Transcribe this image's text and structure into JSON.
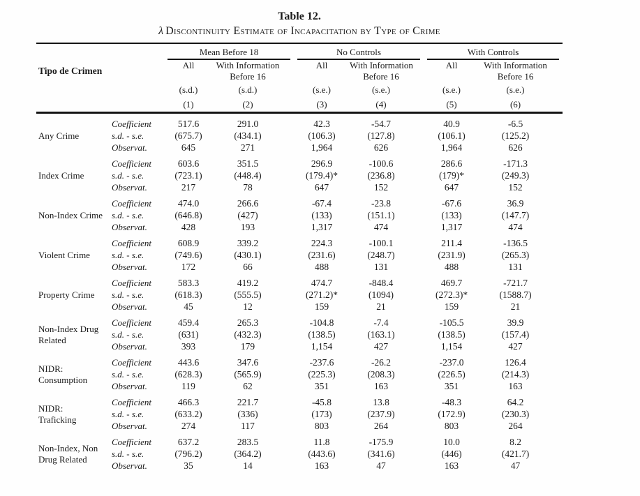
{
  "title": "Table 12.",
  "subtitle": {
    "lambda": "λ",
    "text": "Discontinuity Estimate of Incapacitation by Type of Crime"
  },
  "table": {
    "row_label_header": "Tipo de Crimen",
    "groups": [
      {
        "label": "Mean Before 18"
      },
      {
        "label": "No Controls"
      },
      {
        "label": "With Controls"
      }
    ],
    "columns": [
      {
        "label": "All",
        "label2": "",
        "stat": "(s.d.)",
        "num": "(1)"
      },
      {
        "label": "With Information",
        "label2": "Before 16",
        "stat": "(s.d.)",
        "num": "(2)"
      },
      {
        "label": "All",
        "label2": "",
        "stat": "(s.e.)",
        "num": "(3)"
      },
      {
        "label": "With Information",
        "label2": "Before 16",
        "stat": "(s.e.)",
        "num": "(4)"
      },
      {
        "label": "All",
        "label2": "",
        "stat": "(s.e.)",
        "num": "(5)"
      },
      {
        "label": "With Information",
        "label2": "Before 16",
        "stat": "(s.e.)",
        "num": "(6)"
      }
    ],
    "subrow_labels": [
      "Coefficient",
      "s.d. - s.e.",
      "Observat."
    ],
    "rows": [
      {
        "label": [
          "Any Crime"
        ],
        "coefficient": [
          "517.6",
          "291.0",
          "42.3",
          "-54.7",
          "40.9",
          "-6.5"
        ],
        "sd_se": [
          "(675.7)",
          "(434.1)",
          "(106.3)",
          "(127.8)",
          "(106.1)",
          "(125.2)"
        ],
        "observ": [
          "645",
          "271",
          "1,964",
          "626",
          "1,964",
          "626"
        ]
      },
      {
        "label": [
          "Index Crime"
        ],
        "coefficient": [
          "603.6",
          "351.5",
          "296.9",
          "-100.6",
          "286.6",
          "-171.3"
        ],
        "sd_se": [
          "(723.1)",
          "(448.4)",
          "(179.4)*",
          "(236.8)",
          "(179)*",
          "(249.3)"
        ],
        "observ": [
          "217",
          "78",
          "647",
          "152",
          "647",
          "152"
        ]
      },
      {
        "label": [
          "Non-Index Crime"
        ],
        "coefficient": [
          "474.0",
          "266.6",
          "-67.4",
          "-23.8",
          "-67.6",
          "36.9"
        ],
        "sd_se": [
          "(646.8)",
          "(427)",
          "(133)",
          "(151.1)",
          "(133)",
          "(147.7)"
        ],
        "observ": [
          "428",
          "193",
          "1,317",
          "474",
          "1,317",
          "474"
        ]
      },
      {
        "label": [
          "Violent Crime"
        ],
        "coefficient": [
          "608.9",
          "339.2",
          "224.3",
          "-100.1",
          "211.4",
          "-136.5"
        ],
        "sd_se": [
          "(749.6)",
          "(430.1)",
          "(231.6)",
          "(248.7)",
          "(231.9)",
          "(265.3)"
        ],
        "observ": [
          "172",
          "66",
          "488",
          "131",
          "488",
          "131"
        ]
      },
      {
        "label": [
          "Property Crime"
        ],
        "coefficient": [
          "583.3",
          "419.2",
          "474.7",
          "-848.4",
          "469.7",
          "-721.7"
        ],
        "sd_se": [
          "(618.3)",
          "(555.5)",
          "(271.2)*",
          "(1094)",
          "(272.3)*",
          "(1588.7)"
        ],
        "observ": [
          "45",
          "12",
          "159",
          "21",
          "159",
          "21"
        ]
      },
      {
        "label": [
          "Non-Index Drug",
          "Related"
        ],
        "coefficient": [
          "459.4",
          "265.3",
          "-104.8",
          "-7.4",
          "-105.5",
          "39.9"
        ],
        "sd_se": [
          "(631)",
          "(432.3)",
          "(138.5)",
          "(163.1)",
          "(138.5)",
          "(157.4)"
        ],
        "observ": [
          "393",
          "179",
          "1,154",
          "427",
          "1,154",
          "427"
        ]
      },
      {
        "label": [
          "NIDR:",
          "Consumption"
        ],
        "coefficient": [
          "443.6",
          "347.6",
          "-237.6",
          "-26.2",
          "-237.0",
          "126.4"
        ],
        "sd_se": [
          "(628.3)",
          "(565.9)",
          "(225.3)",
          "(208.3)",
          "(226.5)",
          "(214.3)"
        ],
        "observ": [
          "119",
          "62",
          "351",
          "163",
          "351",
          "163"
        ]
      },
      {
        "label": [
          "NIDR:",
          "Traficking"
        ],
        "coefficient": [
          "466.3",
          "221.7",
          "-45.8",
          "13.8",
          "-48.3",
          "64.2"
        ],
        "sd_se": [
          "(633.2)",
          "(336)",
          "(173)",
          "(237.9)",
          "(172.9)",
          "(230.3)"
        ],
        "observ": [
          "274",
          "117",
          "803",
          "264",
          "803",
          "264"
        ]
      },
      {
        "label": [
          "Non-Index, Non",
          "Drug Related"
        ],
        "coefficient": [
          "637.2",
          "283.5",
          "11.8",
          "-175.9",
          "10.0",
          "8.2"
        ],
        "sd_se": [
          "(796.2)",
          "(364.2)",
          "(443.6)",
          "(341.6)",
          "(446)",
          "(421.7)"
        ],
        "observ": [
          "35",
          "14",
          "163",
          "47",
          "163",
          "47"
        ]
      }
    ]
  }
}
